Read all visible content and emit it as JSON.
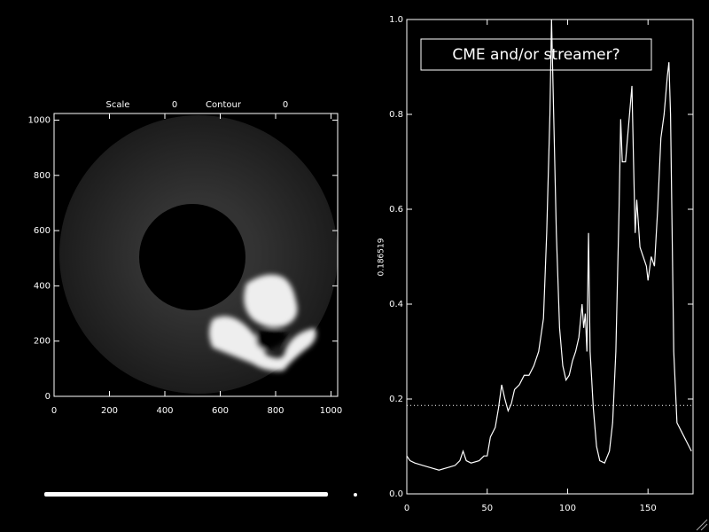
{
  "chart_data": [
    {
      "type": "image",
      "scale_label": "Scale",
      "scale_value": 0,
      "contour_label": "Contour",
      "contour_value": 0,
      "xlim": [
        0,
        1024
      ],
      "ylim": [
        0,
        1024
      ],
      "xticks": [
        0,
        200,
        400,
        600,
        800,
        1000
      ],
      "yticks": [
        0,
        200,
        400,
        600,
        800,
        1000
      ],
      "color": "#ffffff"
    },
    {
      "type": "line",
      "annotation": "CME and/or streamer?",
      "threshold": 0.186519,
      "xlim": [
        0,
        178
      ],
      "ylim": [
        0,
        1
      ],
      "xticks": [
        0,
        50,
        100,
        150
      ],
      "yticks": [
        {
          "value": 0,
          "label": "0.0"
        },
        0.2,
        0.4,
        0.6,
        0.8,
        {
          "value": 1,
          "label": "1.0"
        }
      ],
      "color": "#ffffff",
      "x": [
        0,
        2,
        5,
        10,
        15,
        20,
        25,
        30,
        33,
        35,
        37,
        40,
        45,
        48,
        50,
        52,
        55,
        57,
        59,
        61,
        63,
        65,
        67,
        70,
        73,
        76,
        79,
        82,
        85,
        87,
        89,
        90,
        91,
        93,
        95,
        97,
        99,
        101,
        103,
        105,
        107,
        109,
        110,
        111,
        112,
        113,
        114,
        116,
        118,
        120,
        123,
        126,
        128,
        130,
        132,
        133,
        134,
        136,
        138,
        140,
        141,
        142,
        143,
        145,
        147,
        149,
        150,
        152,
        154,
        156,
        158,
        160,
        162,
        163,
        164,
        166,
        168,
        171,
        174,
        177
      ],
      "values": [
        0.08,
        0.07,
        0.065,
        0.06,
        0.055,
        0.05,
        0.055,
        0.06,
        0.07,
        0.09,
        0.07,
        0.065,
        0.07,
        0.08,
        0.08,
        0.12,
        0.14,
        0.18,
        0.23,
        0.2,
        0.175,
        0.19,
        0.22,
        0.23,
        0.25,
        0.25,
        0.27,
        0.3,
        0.37,
        0.55,
        0.8,
        1.0,
        0.85,
        0.55,
        0.35,
        0.27,
        0.24,
        0.25,
        0.28,
        0.3,
        0.33,
        0.4,
        0.35,
        0.38,
        0.3,
        0.55,
        0.3,
        0.18,
        0.1,
        0.07,
        0.065,
        0.09,
        0.15,
        0.3,
        0.6,
        0.79,
        0.7,
        0.7,
        0.78,
        0.86,
        0.7,
        0.55,
        0.62,
        0.52,
        0.5,
        0.48,
        0.45,
        0.5,
        0.48,
        0.6,
        0.75,
        0.8,
        0.88,
        0.91,
        0.8,
        0.3,
        0.15,
        0.13,
        0.11,
        0.09
      ]
    }
  ]
}
